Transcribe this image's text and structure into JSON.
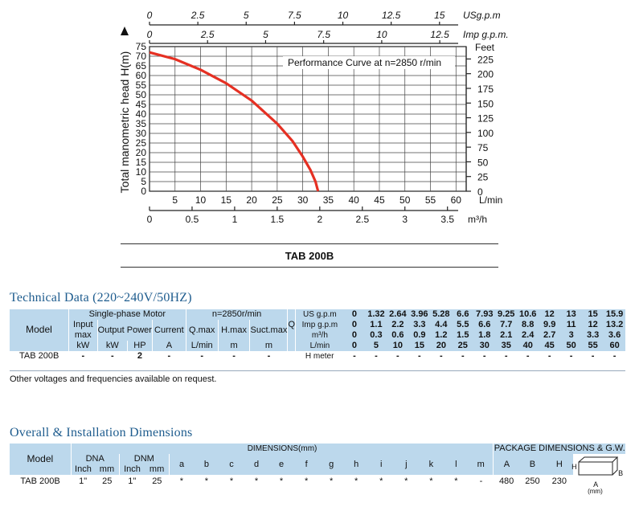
{
  "chart_data": {
    "type": "line",
    "title": "Performance Curve at n=2850 r/min",
    "ylabel": "Total manometric head H(m)",
    "y_ticks": [
      "0",
      "5",
      "10",
      "15",
      "20",
      "25",
      "30",
      "35",
      "40",
      "45",
      "50",
      "55",
      "60",
      "65",
      "70",
      "75"
    ],
    "feet_label": "Feet",
    "feet_ticks": [
      "0",
      "25",
      "50",
      "75",
      "100",
      "125",
      "150",
      "175",
      "200",
      "225"
    ],
    "x_lmin_ticks": [
      "5",
      "10",
      "15",
      "20",
      "25",
      "30",
      "35",
      "40",
      "45",
      "50",
      "55",
      "60"
    ],
    "x_lmin_unit": "L/min",
    "x_m3h_ticks": [
      "0",
      "0.5",
      "1",
      "1.5",
      "2",
      "2.5",
      "3",
      "3.5"
    ],
    "x_m3h_unit": "m³/h",
    "x_usgpm_ticks": [
      "0",
      "2.5",
      "5",
      "7.5",
      "10",
      "12.5",
      "15"
    ],
    "x_usgpm_unit": "USg.p.m",
    "x_impgpm_ticks": [
      "0",
      "2.5",
      "5",
      "7.5",
      "10",
      "12.5"
    ],
    "x_impgpm_unit": "Imp g.p.m.",
    "xlim_lmin": [
      0,
      62
    ],
    "ylim_m": [
      0,
      75
    ],
    "grid": true,
    "series": [
      {
        "x": [
          0,
          5,
          10,
          15,
          20,
          25,
          28,
          30,
          31.5,
          32.5,
          33
        ],
        "y": [
          72,
          68.5,
          63,
          56,
          47,
          35,
          26,
          18,
          11,
          5,
          0
        ]
      }
    ]
  },
  "curve_color": "#e53023",
  "model_name": "TAB 200B",
  "technical": {
    "title": "Technical Data (220~240V/50HZ)",
    "model_label": "Model",
    "motor_label": "Single-phase Motor",
    "rpm_label": "n=2850r/min",
    "input_label_1": "Input",
    "input_label_2": "max",
    "output_label": "Output Power",
    "current_label": "Current",
    "qmax_label": "Q.max",
    "hmax_label": "H.max",
    "suct_label": "Suct.max",
    "q_label": "Q",
    "kw_label": "kW",
    "kw2_label": "kW",
    "hp_label": "HP",
    "a_label": "A",
    "lmin_label": "L/min",
    "m_label": "m",
    "m2_label": "m",
    "usgpm_label": "US g.p.m",
    "impgpm_label": "Imp g.p.m",
    "m3h_label": "m³/h",
    "lmin2_label": "L/min",
    "hmeter_label": "H meter",
    "usgpm_values": [
      "0",
      "1.32",
      "2.64",
      "3.96",
      "5.28",
      "6.6",
      "7.93",
      "9.25",
      "10.6",
      "12",
      "13",
      "15",
      "15.9"
    ],
    "impgpm_values": [
      "0",
      "1.1",
      "2.2",
      "3.3",
      "4.4",
      "5.5",
      "6.6",
      "7.7",
      "8.8",
      "9.9",
      "11",
      "12",
      "13.2"
    ],
    "m3h_values": [
      "0",
      "0.3",
      "0.6",
      "0.9",
      "1.2",
      "1.5",
      "1.8",
      "2.1",
      "2.4",
      "2.7",
      "3",
      "3.3",
      "3.6"
    ],
    "lmin_values": [
      "0",
      "5",
      "10",
      "15",
      "20",
      "25",
      "30",
      "35",
      "40",
      "45",
      "50",
      "55",
      "60"
    ],
    "row": {
      "model": "TAB 200B",
      "input": "-",
      "kw": "-",
      "hp": "2",
      "a": "-",
      "qmax": "-",
      "hmax": "-",
      "suct": "-",
      "h_values": [
        "-",
        "-",
        "-",
        "-",
        "-",
        "-",
        "-",
        "-",
        "-",
        "-",
        "-",
        "-",
        "-"
      ]
    },
    "note": "Other voltages and frequencies available on request."
  },
  "dimensions": {
    "title": "Overall & Installation Dimensions",
    "model_label": "Model",
    "dims_label": "DIMENSIONS(mm)",
    "pkg_label": "PACKAGE DIMENSIONS & G.W.",
    "dna_label": "DNA",
    "dnm_label": "DNM",
    "inch1": "Inch",
    "mm1": "mm",
    "inch2": "Inch",
    "mm2": "mm",
    "letters": [
      "a",
      "b",
      "c",
      "d",
      "e",
      "f",
      "g",
      "h",
      "i",
      "j",
      "k",
      "l",
      "m"
    ],
    "pkg_letters": [
      "A",
      "B",
      "H"
    ],
    "box_h": "H",
    "box_b": "B",
    "box_a": "A",
    "box_mm": "(mm)",
    "row": {
      "model": "TAB 200B",
      "dna_inch": "1\"",
      "dna_mm": "25",
      "dnm_inch": "1\"",
      "dnm_mm": "25",
      "values": [
        "*",
        "*",
        "*",
        "*",
        "*",
        "*",
        "*",
        "*",
        "*",
        "*",
        "*",
        "*",
        "-"
      ],
      "pkg_values": [
        "480",
        "250",
        "230"
      ]
    }
  }
}
